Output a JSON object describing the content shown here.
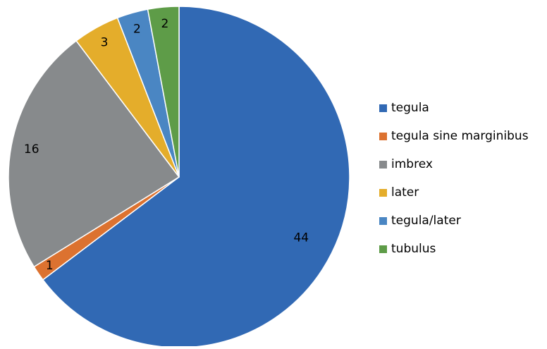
{
  "chart_data": {
    "type": "pie",
    "title": "",
    "categories": [
      "tegula",
      "tegula sine marginibus",
      "imbrex",
      "later",
      "tegula/later",
      "tubulus"
    ],
    "values": [
      44,
      1,
      16,
      3,
      2,
      2
    ],
    "data_labels": [
      "44",
      "1",
      "16",
      "3",
      "2",
      "2"
    ],
    "colors": [
      "#3169b4",
      "#dc7230",
      "#878a8c",
      "#e4ad2b",
      "#4a86c3",
      "#5e9c48"
    ],
    "start_angle": "12 o'clock",
    "direction": "clockwise",
    "legend_position": "right"
  }
}
